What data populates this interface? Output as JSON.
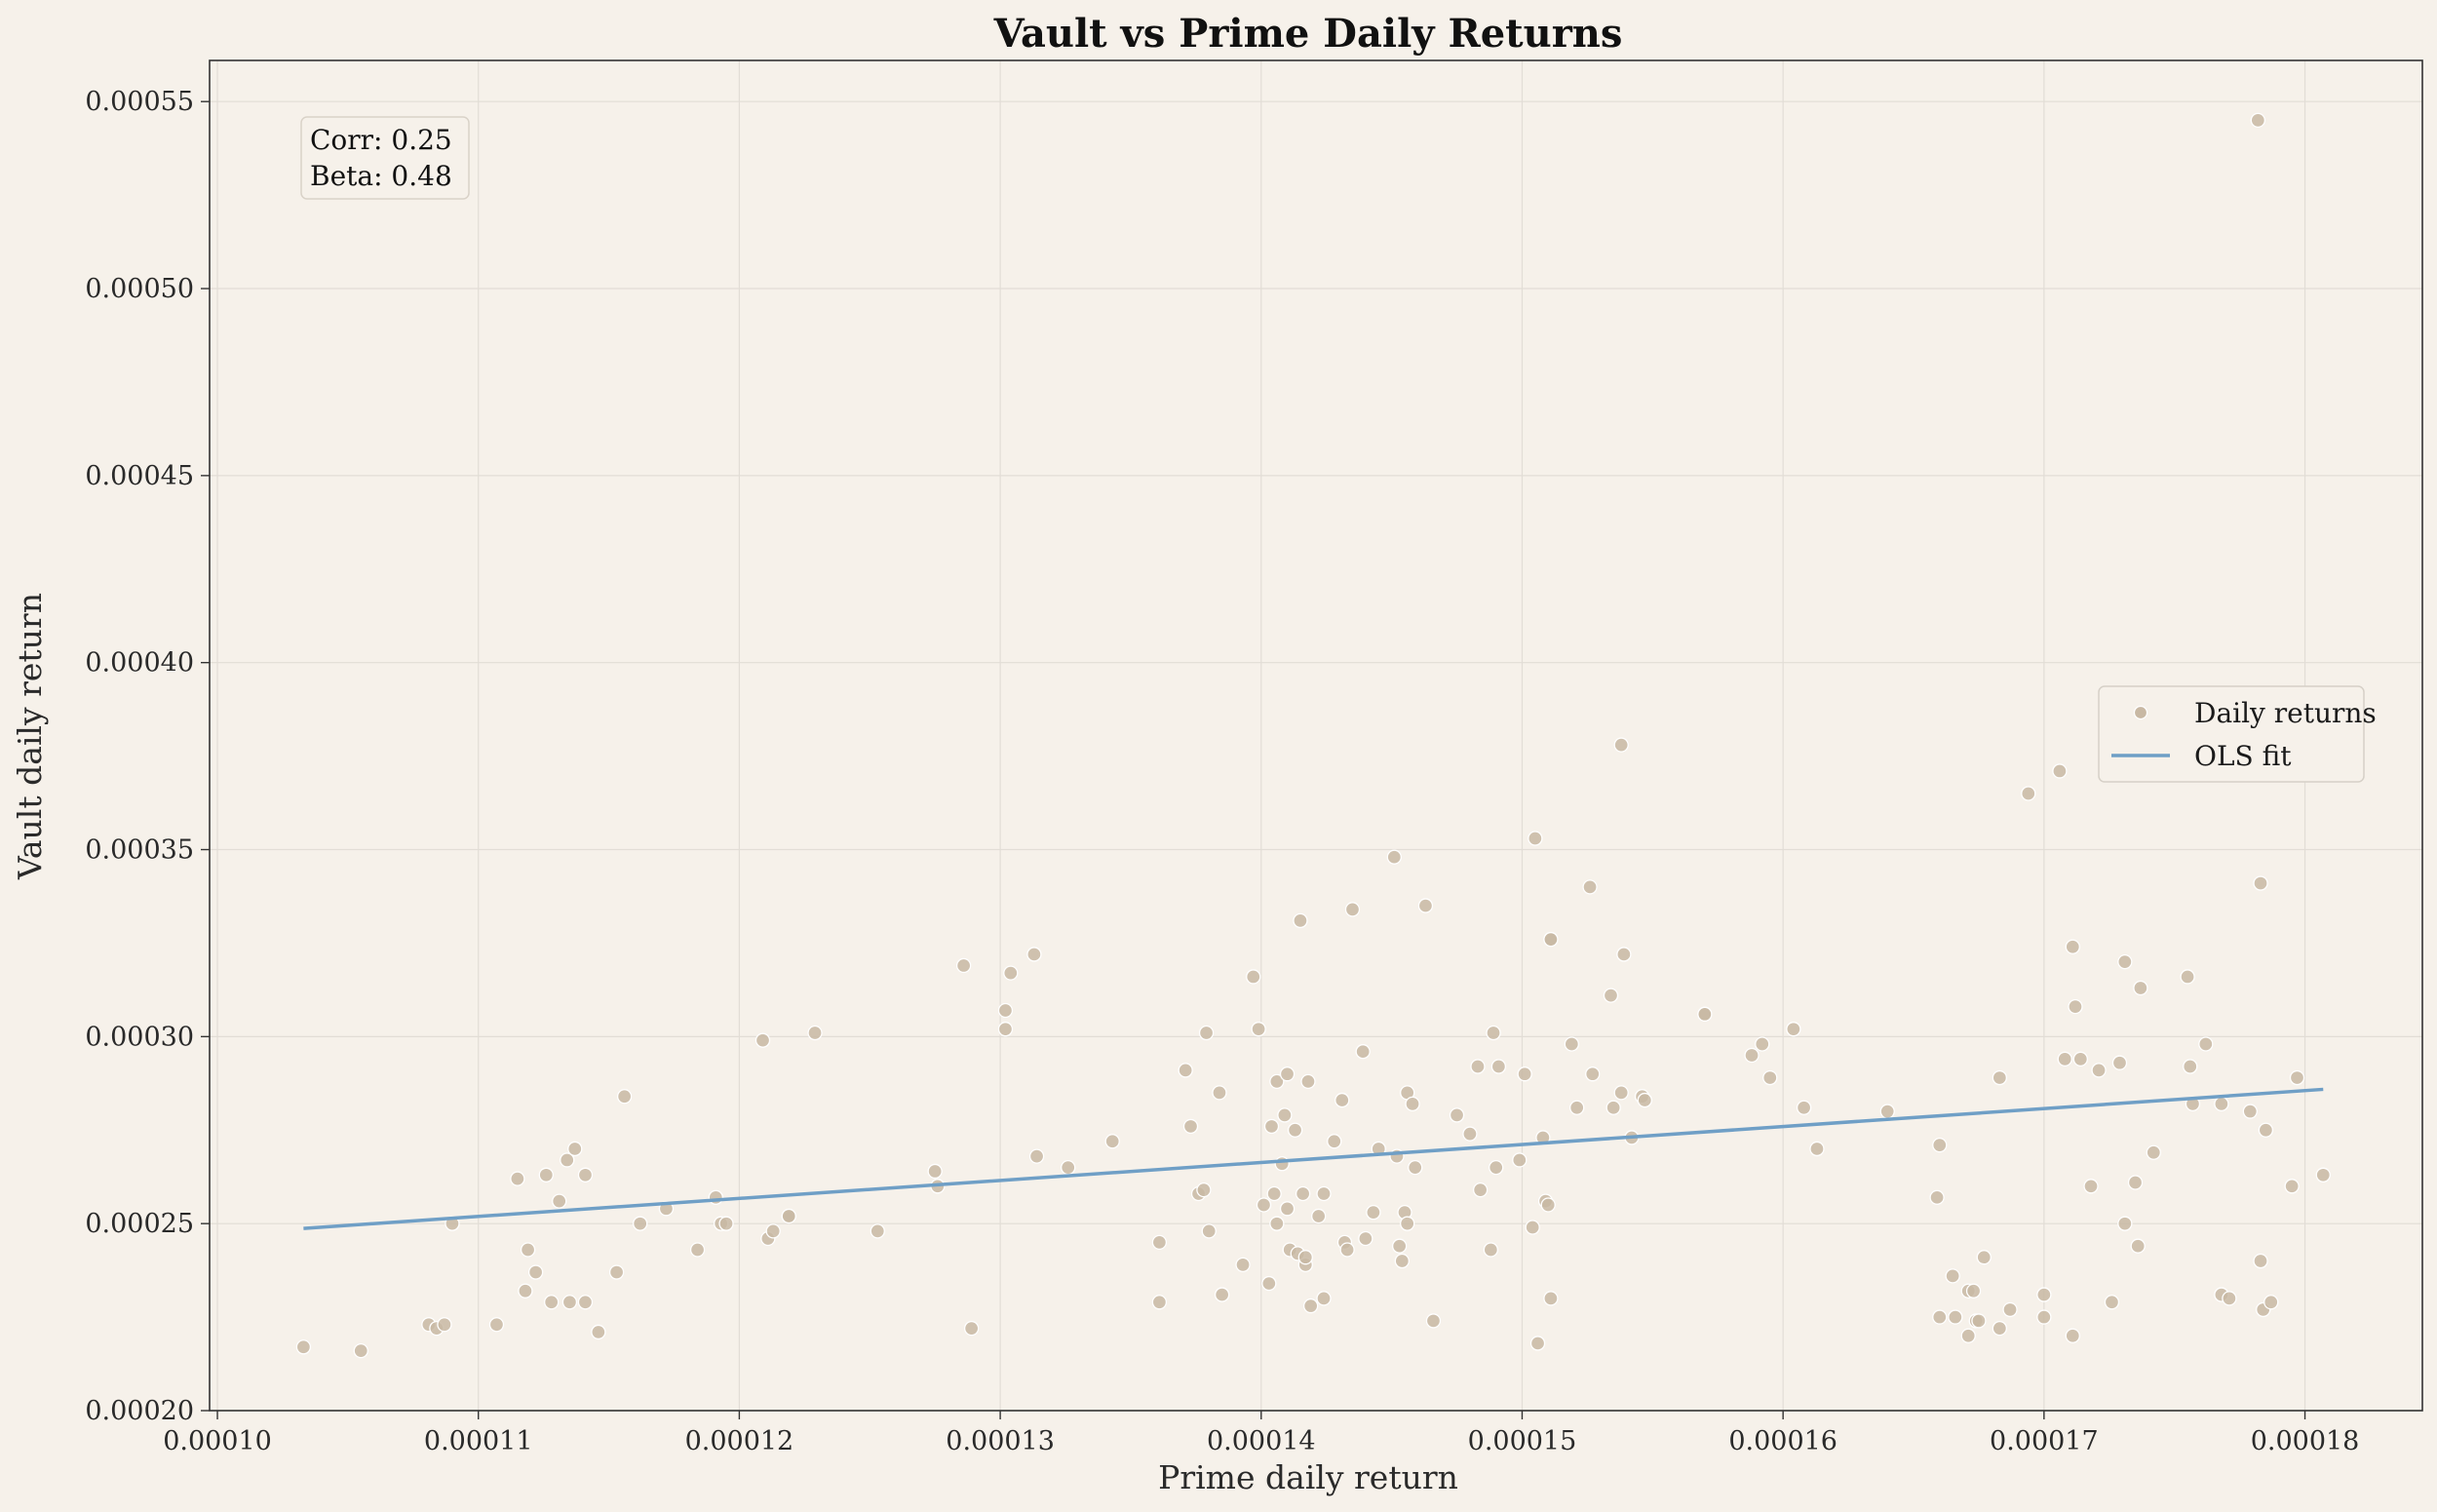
{
  "chart_data": {
    "type": "scatter",
    "title": "Vault vs Prime Daily Returns",
    "xlabel": "Prime daily return",
    "ylabel": "Vault daily return",
    "xlim": [
      9.97e-05,
      0.0001845
    ],
    "ylim": [
      0.0002,
      0.000561
    ],
    "xticks": [
      0.0001,
      0.00011,
      0.00012,
      0.00013,
      0.00014,
      0.00015,
      0.00016,
      0.00017,
      0.00018
    ],
    "xtick_labels": [
      "0.00010",
      "0.00011",
      "0.00012",
      "0.00013",
      "0.00014",
      "0.00015",
      "0.00016",
      "0.00017",
      "0.00018"
    ],
    "yticks": [
      0.0002,
      0.00025,
      0.0003,
      0.00035,
      0.0004,
      0.00045,
      0.0005,
      0.00055
    ],
    "ytick_labels": [
      "0.00020",
      "0.00025",
      "0.00030",
      "0.00035",
      "0.00040",
      "0.00045",
      "0.00050",
      "0.00055"
    ],
    "grid": true,
    "legend_position": "center-right",
    "stats": {
      "corr_label": "Corr: 0.25",
      "beta_label": "Beta: 0.48"
    },
    "colors": {
      "background": "#f6f1ea",
      "points": "#c8b8a3",
      "point_edge": "#ffffff",
      "fit_line": "#6f9fc6",
      "grid": "#e2ddd6"
    },
    "series": [
      {
        "name": "Daily returns",
        "kind": "scatter",
        "points": [
          [
            0.0001033,
            0.000217
          ],
          [
            0.0001055,
            0.000216
          ],
          [
            0.0001081,
            0.000223
          ],
          [
            0.0001084,
            0.000222
          ],
          [
            0.0001087,
            0.000223
          ],
          [
            0.000109,
            0.00025
          ],
          [
            0.0001107,
            0.000223
          ],
          [
            0.0001115,
            0.000262
          ],
          [
            0.0001118,
            0.000232
          ],
          [
            0.0001119,
            0.000243
          ],
          [
            0.0001122,
            0.000237
          ],
          [
            0.0001126,
            0.000263
          ],
          [
            0.0001128,
            0.000229
          ],
          [
            0.0001131,
            0.000256
          ],
          [
            0.0001134,
            0.000267
          ],
          [
            0.0001135,
            0.000229
          ],
          [
            0.0001137,
            0.00027
          ],
          [
            0.0001141,
            0.000263
          ],
          [
            0.0001141,
            0.000229
          ],
          [
            0.0001146,
            0.000221
          ],
          [
            0.0001153,
            0.000237
          ],
          [
            0.0001156,
            0.000284
          ],
          [
            0.0001162,
            0.00025
          ],
          [
            0.0001172,
            0.000254
          ],
          [
            0.0001184,
            0.000243
          ],
          [
            0.0001191,
            0.000257
          ],
          [
            0.0001193,
            0.00025
          ],
          [
            0.0001195,
            0.00025
          ],
          [
            0.0001209,
            0.000299
          ],
          [
            0.0001211,
            0.000246
          ],
          [
            0.0001213,
            0.000248
          ],
          [
            0.0001219,
            0.000252
          ],
          [
            0.0001219,
            0.000252
          ],
          [
            0.0001229,
            0.000301
          ],
          [
            0.0001253,
            0.000248
          ],
          [
            0.0001275,
            0.000264
          ],
          [
            0.0001276,
            0.00026
          ],
          [
            0.0001286,
            0.000319
          ],
          [
            0.0001289,
            0.000222
          ],
          [
            0.0001302,
            0.000302
          ],
          [
            0.0001302,
            0.000307
          ],
          [
            0.0001304,
            0.000317
          ],
          [
            0.0001313,
            0.000322
          ],
          [
            0.0001314,
            0.000268
          ],
          [
            0.0001326,
            0.000265
          ],
          [
            0.0001343,
            0.000272
          ],
          [
            0.0001361,
            0.000245
          ],
          [
            0.0001361,
            0.000229
          ],
          [
            0.0001371,
            0.000291
          ],
          [
            0.0001373,
            0.000276
          ],
          [
            0.0001376,
            0.000258
          ],
          [
            0.0001378,
            0.000259
          ],
          [
            0.0001379,
            0.000301
          ],
          [
            0.000138,
            0.000248
          ],
          [
            0.0001384,
            0.000285
          ],
          [
            0.0001385,
            0.000231
          ],
          [
            0.0001393,
            0.000239
          ],
          [
            0.0001397,
            0.000316
          ],
          [
            0.0001399,
            0.000302
          ],
          [
            0.0001401,
            0.000255
          ],
          [
            0.0001403,
            0.000234
          ],
          [
            0.0001404,
            0.000276
          ],
          [
            0.0001405,
            0.000258
          ],
          [
            0.0001406,
            0.000288
          ],
          [
            0.0001406,
            0.00025
          ],
          [
            0.0001408,
            0.000266
          ],
          [
            0.0001409,
            0.000279
          ],
          [
            0.000141,
            0.00029
          ],
          [
            0.000141,
            0.000254
          ],
          [
            0.0001411,
            0.000243
          ],
          [
            0.0001413,
            0.000275
          ],
          [
            0.0001414,
            0.000242
          ],
          [
            0.0001415,
            0.000331
          ],
          [
            0.0001416,
            0.000258
          ],
          [
            0.0001417,
            0.000239
          ],
          [
            0.0001417,
            0.000241
          ],
          [
            0.0001418,
            0.000288
          ],
          [
            0.0001419,
            0.000228
          ],
          [
            0.0001422,
            0.000252
          ],
          [
            0.0001424,
            0.000258
          ],
          [
            0.0001424,
            0.00023
          ],
          [
            0.0001428,
            0.000272
          ],
          [
            0.0001431,
            0.000283
          ],
          [
            0.0001432,
            0.000245
          ],
          [
            0.0001433,
            0.000243
          ],
          [
            0.0001435,
            0.000334
          ],
          [
            0.0001439,
            0.000296
          ],
          [
            0.000144,
            0.000246
          ],
          [
            0.0001443,
            0.000253
          ],
          [
            0.0001445,
            0.00027
          ],
          [
            0.0001451,
            0.000348
          ],
          [
            0.0001452,
            0.000268
          ],
          [
            0.0001453,
            0.000244
          ],
          [
            0.0001454,
            0.00024
          ],
          [
            0.0001455,
            0.000253
          ],
          [
            0.0001456,
            0.00025
          ],
          [
            0.0001456,
            0.000285
          ],
          [
            0.0001458,
            0.000282
          ],
          [
            0.0001459,
            0.000265
          ],
          [
            0.0001463,
            0.000335
          ],
          [
            0.0001466,
            0.000224
          ],
          [
            0.0001475,
            0.000279
          ],
          [
            0.000148,
            0.000274
          ],
          [
            0.0001483,
            0.000292
          ],
          [
            0.0001484,
            0.000259
          ],
          [
            0.0001488,
            0.000243
          ],
          [
            0.0001489,
            0.000301
          ],
          [
            0.000149,
            0.000265
          ],
          [
            0.0001491,
            0.000292
          ],
          [
            0.0001499,
            0.000267
          ],
          [
            0.0001501,
            0.00029
          ],
          [
            0.0001504,
            0.000249
          ],
          [
            0.0001505,
            0.000353
          ],
          [
            0.0001506,
            0.000218
          ],
          [
            0.0001508,
            0.000273
          ],
          [
            0.0001509,
            0.000256
          ],
          [
            0.000151,
            0.000255
          ],
          [
            0.0001511,
            0.000326
          ],
          [
            0.0001511,
            0.000326
          ],
          [
            0.0001511,
            0.00023
          ],
          [
            0.0001519,
            0.000298
          ],
          [
            0.0001521,
            0.000281
          ],
          [
            0.0001526,
            0.00034
          ],
          [
            0.0001527,
            0.00029
          ],
          [
            0.0001534,
            0.000311
          ],
          [
            0.0001535,
            0.000281
          ],
          [
            0.0001538,
            0.000285
          ],
          [
            0.0001538,
            0.000378
          ],
          [
            0.0001539,
            0.000322
          ],
          [
            0.0001542,
            0.000273
          ],
          [
            0.0001546,
            0.000284
          ],
          [
            0.0001547,
            0.000283
          ],
          [
            0.000157,
            0.000306
          ],
          [
            0.000157,
            0.000306
          ],
          [
            0.0001588,
            0.000295
          ],
          [
            0.0001592,
            0.000298
          ],
          [
            0.0001595,
            0.000289
          ],
          [
            0.0001604,
            0.000302
          ],
          [
            0.0001608,
            0.000281
          ],
          [
            0.0001613,
            0.00027
          ],
          [
            0.000164,
            0.00028
          ],
          [
            0.0001659,
            0.000257
          ],
          [
            0.000166,
            0.000271
          ],
          [
            0.000166,
            0.000225
          ],
          [
            0.0001665,
            0.000236
          ],
          [
            0.0001666,
            0.000225
          ],
          [
            0.0001671,
            0.00022
          ],
          [
            0.0001671,
            0.000232
          ],
          [
            0.0001673,
            0.000232
          ],
          [
            0.0001674,
            0.000224
          ],
          [
            0.0001675,
            0.000224
          ],
          [
            0.0001677,
            0.000241
          ],
          [
            0.0001683,
            0.000289
          ],
          [
            0.0001683,
            0.000222
          ],
          [
            0.0001687,
            0.000227
          ],
          [
            0.0001694,
            0.000365
          ],
          [
            0.00017,
            0.000231
          ],
          [
            0.00017,
            0.000225
          ],
          [
            0.0001706,
            0.000371
          ],
          [
            0.0001708,
            0.000294
          ],
          [
            0.0001711,
            0.000324
          ],
          [
            0.0001711,
            0.00022
          ],
          [
            0.0001712,
            0.000308
          ],
          [
            0.0001714,
            0.000294
          ],
          [
            0.0001718,
            0.00026
          ],
          [
            0.0001721,
            0.000291
          ],
          [
            0.0001726,
            0.000229
          ],
          [
            0.0001729,
            0.000293
          ],
          [
            0.0001731,
            0.00032
          ],
          [
            0.0001731,
            0.00025
          ],
          [
            0.0001735,
            0.000261
          ],
          [
            0.0001736,
            0.000244
          ],
          [
            0.0001737,
            0.000313
          ],
          [
            0.0001742,
            0.000269
          ],
          [
            0.0001755,
            0.000316
          ],
          [
            0.0001756,
            0.000292
          ],
          [
            0.0001757,
            0.000282
          ],
          [
            0.0001762,
            0.000298
          ],
          [
            0.0001768,
            0.000231
          ],
          [
            0.0001768,
            0.000282
          ],
          [
            0.0001771,
            0.00023
          ],
          [
            0.0001779,
            0.00028
          ],
          [
            0.0001782,
            0.000545
          ],
          [
            0.0001783,
            0.000341
          ],
          [
            0.0001783,
            0.00024
          ],
          [
            0.0001784,
            0.000227
          ],
          [
            0.0001785,
            0.000275
          ],
          [
            0.0001787,
            0.000229
          ],
          [
            0.0001795,
            0.00026
          ],
          [
            0.0001797,
            0.000289
          ],
          [
            0.0001807,
            0.000263
          ]
        ]
      },
      {
        "name": "OLS fit",
        "kind": "line",
        "points": [
          [
            0.0001033,
            0.0002487
          ],
          [
            0.0001807,
            0.0002859
          ]
        ]
      }
    ]
  }
}
